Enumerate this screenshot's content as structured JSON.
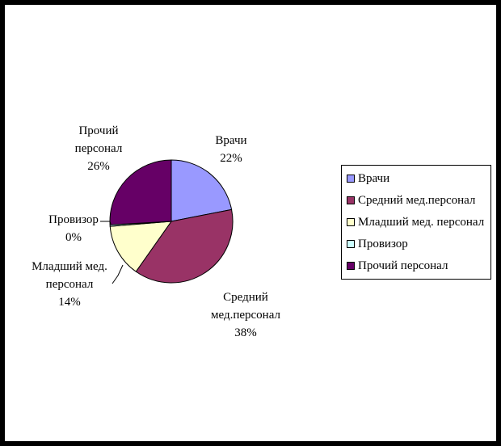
{
  "chart_data": {
    "type": "pie",
    "title": "",
    "categories": [
      "Врачи",
      "Средний мед.персонал",
      "Младший мед. персонал",
      "Провизор",
      "Прочий персонал"
    ],
    "values": [
      22,
      38,
      14,
      0.4,
      26
    ],
    "value_labels": [
      "22%",
      "38%",
      "14%",
      "0%",
      "26%"
    ],
    "slice_labels": [
      [
        "Врачи",
        "22%"
      ],
      [
        "Средний",
        "мед.персонал",
        "38%"
      ],
      [
        "Младший мед.",
        "персонал",
        "14%"
      ],
      [
        "Провизор",
        "0%"
      ],
      [
        "Прочий",
        "персонал",
        "26%"
      ]
    ],
    "colors": [
      "#9999FF",
      "#993366",
      "#FFFFCC",
      "#CCFFFF",
      "#660066"
    ],
    "legend": {
      "position": "right",
      "items": [
        "Врачи",
        "Средний мед.персонал",
        "Младший мед. персонал",
        "Провизор",
        "Прочий персонал"
      ]
    },
    "grid": false
  }
}
